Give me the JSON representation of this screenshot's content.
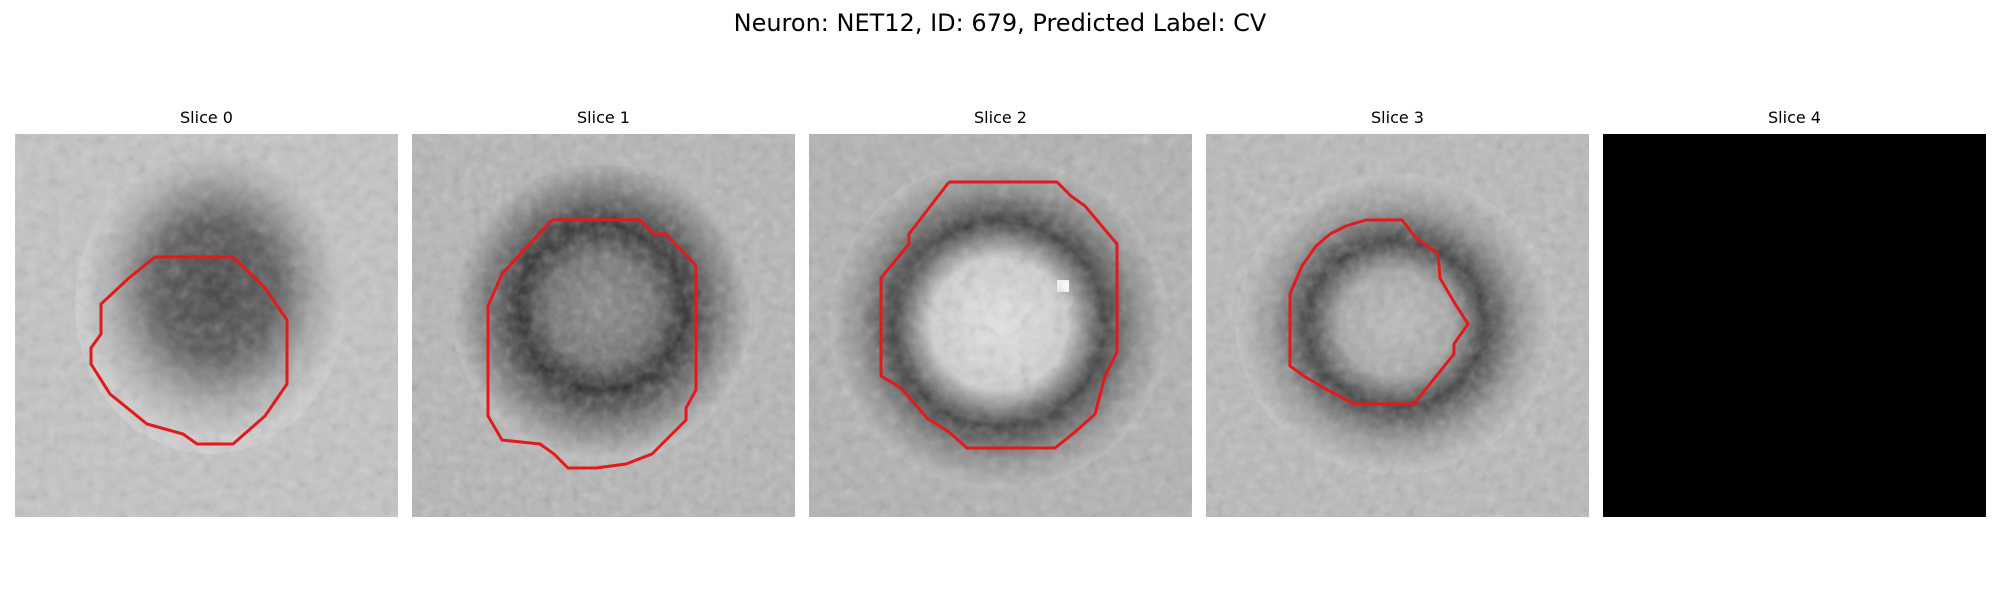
{
  "figure": {
    "title": "Neuron: NET12, ID: 679, Predicted Label: CV"
  },
  "colors": {
    "contour": "#e31a1c",
    "background": "#ffffff"
  },
  "panels": [
    {
      "title": "Slice 0",
      "has_contour": true
    },
    {
      "title": "Slice 1",
      "has_contour": true
    },
    {
      "title": "Slice 2",
      "has_contour": true
    },
    {
      "title": "Slice 3",
      "has_contour": true
    },
    {
      "title": "Slice 4",
      "has_contour": false,
      "blank": true
    }
  ]
}
